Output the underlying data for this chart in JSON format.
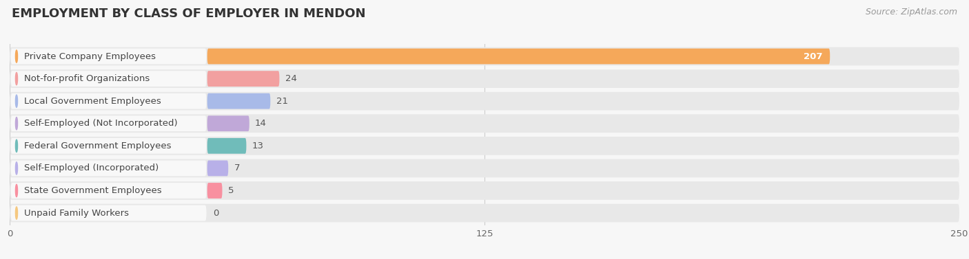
{
  "title": "EMPLOYMENT BY CLASS OF EMPLOYER IN MENDON",
  "source": "Source: ZipAtlas.com",
  "categories": [
    "Private Company Employees",
    "Not-for-profit Organizations",
    "Local Government Employees",
    "Self-Employed (Not Incorporated)",
    "Federal Government Employees",
    "Self-Employed (Incorporated)",
    "State Government Employees",
    "Unpaid Family Workers"
  ],
  "values": [
    207,
    24,
    21,
    14,
    13,
    7,
    5,
    0
  ],
  "bar_colors": [
    "#F5A85A",
    "#F2A0A0",
    "#A8BAE8",
    "#C0A8D8",
    "#70BCBA",
    "#B8B0E8",
    "#F890A0",
    "#F5C880"
  ],
  "bg_color": "#f7f7f7",
  "pill_bg_color": "#e8e8e8",
  "label_bg_color": "#f0f0f0",
  "xlim_data": [
    0,
    250
  ],
  "data_max": 250,
  "label_area": 52,
  "xticks": [
    0,
    125,
    250
  ],
  "title_fontsize": 13,
  "label_fontsize": 9.5,
  "value_fontsize": 9.5,
  "source_fontsize": 9
}
